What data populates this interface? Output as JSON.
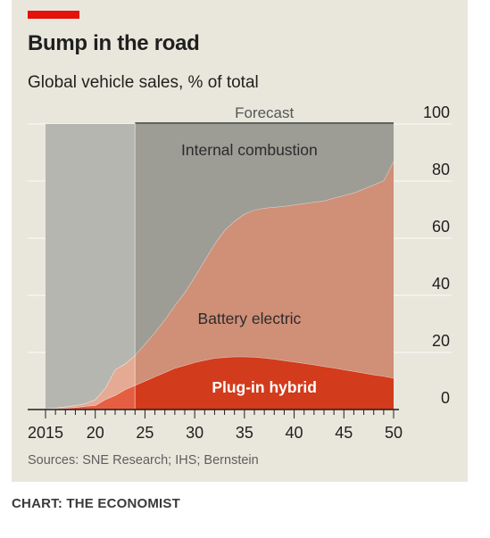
{
  "header": {
    "title": "Bump in the road",
    "subtitle": "Global vehicle sales, % of total"
  },
  "footer": {
    "source": "Sources: SNE Research; IHS; Bernstein",
    "credit": "CHART: THE ECONOMIST"
  },
  "colors": {
    "background": "#e9e7dc",
    "brand_red": "#e3120b",
    "internal_combustion": "#a9a9a2",
    "battery_electric": "#e09a80",
    "plug_in_hybrid": "#e2401e",
    "forecast_shade": "#8f8f89"
  },
  "chart_data": {
    "type": "area",
    "stacked": true,
    "xlim": [
      2015,
      2050
    ],
    "ylim": [
      0,
      100
    ],
    "y_axis_position": "right",
    "grid": true,
    "forecast_label": "Forecast",
    "forecast_start": 2024,
    "x_tick_labels": [
      "2015",
      "20",
      "25",
      "30",
      "35",
      "40",
      "45",
      "50"
    ],
    "x_tick_values": [
      2015,
      2020,
      2025,
      2030,
      2035,
      2040,
      2045,
      2050
    ],
    "y_tick_labels": [
      "0",
      "20",
      "40",
      "60",
      "80",
      "100"
    ],
    "y_tick_values": [
      0,
      20,
      40,
      60,
      80,
      100
    ],
    "x": [
      2015,
      2016,
      2017,
      2018,
      2019,
      2020,
      2021,
      2022,
      2023,
      2024,
      2025,
      2026,
      2027,
      2028,
      2029,
      2030,
      2031,
      2032,
      2033,
      2034,
      2035,
      2036,
      2037,
      2038,
      2039,
      2040,
      2041,
      2042,
      2043,
      2044,
      2045,
      2046,
      2047,
      2048,
      2049,
      2050
    ],
    "series": [
      {
        "name": "Plug-in hybrid",
        "color": "#e2401e",
        "values": [
          0.2,
          0.3,
          0.5,
          0.8,
          1.2,
          1.5,
          3.5,
          5,
          7,
          8.5,
          10,
          11.5,
          13,
          14.5,
          15.5,
          16.5,
          17.3,
          18,
          18.3,
          18.5,
          18.5,
          18.4,
          18.1,
          17.7,
          17.2,
          16.7,
          16.2,
          15.7,
          15.1,
          14.6,
          14,
          13.4,
          12.8,
          12.2,
          11.7,
          11
        ]
      },
      {
        "name": "Battery electric",
        "color": "#e09a80",
        "values": [
          0.1,
          0.3,
          0.5,
          0.7,
          0.9,
          2,
          4,
          9,
          9,
          10.5,
          13,
          15.5,
          18.5,
          22,
          25.5,
          30,
          35,
          40,
          44.5,
          47.5,
          50,
          51.5,
          52.5,
          53.2,
          54,
          55,
          56,
          57,
          58,
          59.5,
          61,
          62.5,
          64.5,
          66.5,
          68.5,
          76
        ]
      },
      {
        "name": "Internal combustion",
        "color": "#a9a9a2",
        "values": [
          99.7,
          99.4,
          99,
          98.5,
          97.9,
          96.5,
          92.5,
          86,
          84,
          81,
          77,
          73,
          68.5,
          63.5,
          59,
          53.5,
          47.7,
          42,
          37.2,
          34,
          31.5,
          30.1,
          29.4,
          29.1,
          28.8,
          28.3,
          27.8,
          27.3,
          26.9,
          25.9,
          25,
          24.1,
          22.7,
          21.3,
          19.8,
          13
        ]
      }
    ],
    "annotations": [
      {
        "text": "Internal combustion",
        "x": 2035.5,
        "y": 89,
        "color": "#2b2b2b",
        "weight": "normal"
      },
      {
        "text": "Battery electric",
        "x": 2035.5,
        "y": 30,
        "color": "#2b2b2b",
        "weight": "normal"
      },
      {
        "text": "Plug-in hybrid",
        "x": 2037,
        "y": 6,
        "color": "#ffffff",
        "weight": "bold"
      }
    ]
  }
}
